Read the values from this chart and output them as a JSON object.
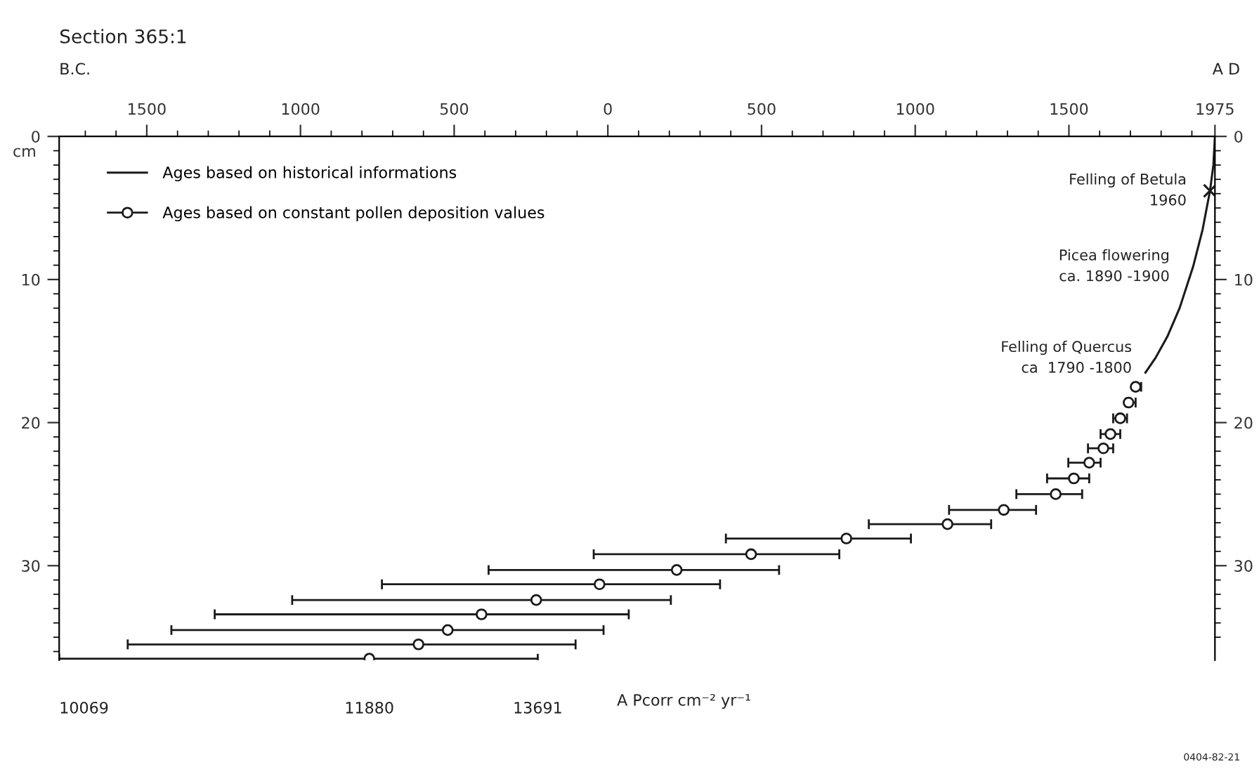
{
  "chart_data": {
    "type": "scatter",
    "title": "Section 365:1",
    "ylabel": "cm",
    "annotations": [
      "B.C.",
      "A D",
      {
        "text": "Felling of Betula\n1960",
        "x": 1959,
        "y": 3.8
      },
      {
        "text": "Picea flowering\nca. 1890 -1900",
        "x": 1904,
        "y": 9.1
      },
      {
        "text": "Felling of Quercus\nca  1790 -1800",
        "x": 1781,
        "y": 15.5
      },
      {
        "text": "10069",
        "x": -1785,
        "y": 36.5
      },
      {
        "text": "11880",
        "x": -776,
        "y": 36.5
      },
      {
        "text": "13691",
        "x": -228,
        "y": 36.5
      },
      "A Pcorr cm⁻² yr⁻¹",
      "0404-82-21"
    ],
    "legend": "top left",
    "grid": false,
    "series": [
      {
        "name": "Ages based on historical informations",
        "type": "line",
        "color": "#1a1a1a",
        "marker": "none",
        "line_style": "solid",
        "x": [
          1975,
          1970,
          1959,
          1935,
          1904,
          1860,
          1820,
          1781,
          1749
        ],
        "values": [
          0,
          2,
          3.8,
          6.5,
          9.1,
          12,
          14,
          15.5,
          16.5
        ]
      },
      {
        "name": "Ages based on constant pollen deposition values",
        "color": "#1a1a1a",
        "marker": "circle",
        "x": [
          1717,
          1694,
          1667,
          1635,
          1612,
          1566,
          1516,
          1457,
          1288,
          1105,
          776,
          466,
          224,
          -27,
          -233,
          -411,
          -521,
          -616,
          -776
        ],
        "values": [
          17.5,
          18.6,
          19.7,
          20.8,
          21.8,
          22.8,
          23.9,
          25.0,
          26.1,
          27.1,
          28.1,
          29.2,
          30.3,
          31.3,
          32.4,
          33.4,
          34.5,
          35.5,
          36.5
        ],
        "xerrors": [
          [
            1712,
            1735
          ],
          [
            1685,
            1717
          ],
          [
            1644,
            1689
          ],
          [
            1603,
            1667
          ],
          [
            1562,
            1644
          ],
          [
            1498,
            1603
          ],
          [
            1429,
            1566
          ],
          [
            1329,
            1543
          ],
          [
            1110,
            1393
          ],
          [
            849,
            1247
          ],
          [
            384,
            986
          ],
          [
            -46,
            753
          ],
          [
            -388,
            557
          ],
          [
            -735,
            365
          ],
          [
            -1027,
            205
          ],
          [
            -1279,
            68
          ],
          [
            -1420,
            -14
          ],
          [
            -1562,
            -105
          ],
          [
            -1785,
            -228
          ]
        ]
      },
      {
        "color": "#1a1a1a",
        "marker": "cross",
        "x": [
          1959
        ],
        "values": [
          3.8
        ]
      }
    ],
    "xlim": [
      -1785,
      1975
    ],
    "xticks": [
      {
        "value": -1700,
        "label": null
      },
      {
        "value": -1600,
        "label": null
      },
      {
        "value": -1500,
        "label": "1500"
      },
      {
        "value": -1400,
        "label": null
      },
      {
        "value": -1300,
        "label": null
      },
      {
        "value": -1200,
        "label": null
      },
      {
        "value": -1100,
        "label": null
      },
      {
        "value": -1000,
        "label": "1000"
      },
      {
        "value": -900,
        "label": null
      },
      {
        "value": -800,
        "label": null
      },
      {
        "value": -700,
        "label": null
      },
      {
        "value": -600,
        "label": null
      },
      {
        "value": -500,
        "label": "500"
      },
      {
        "value": -400,
        "label": null
      },
      {
        "value": -300,
        "label": null
      },
      {
        "value": -200,
        "label": null
      },
      {
        "value": -100,
        "label": null
      },
      0,
      {
        "value": 100,
        "label": null
      },
      {
        "value": 200,
        "label": null
      },
      {
        "value": 300,
        "label": null
      },
      {
        "value": 400,
        "label": null
      },
      500,
      {
        "value": 600,
        "label": null
      },
      {
        "value": 700,
        "label": null
      },
      {
        "value": 800,
        "label": null
      },
      {
        "value": 900,
        "label": null
      },
      1000,
      {
        "value": 1100,
        "label": null
      },
      {
        "value": 1200,
        "label": null
      },
      {
        "value": 1300,
        "label": null
      },
      {
        "value": 1400,
        "label": null
      },
      1500,
      {
        "value": 1600,
        "label": null
      },
      {
        "value": 1700,
        "label": null
      },
      {
        "value": 1800,
        "label": null
      },
      {
        "value": 1900,
        "label": null
      },
      1975
    ],
    "ylim": [
      36.6,
      0
    ],
    "yticks": [
      0,
      {
        "value": 1,
        "label": null
      },
      {
        "value": 2,
        "label": null
      },
      {
        "value": 3,
        "label": null
      },
      {
        "value": 4,
        "label": null
      },
      {
        "value": 5,
        "label": null
      },
      {
        "value": 6,
        "label": null
      },
      {
        "value": 7,
        "label": null
      },
      {
        "value": 8,
        "label": null
      },
      {
        "value": 9,
        "label": null
      },
      10,
      {
        "value": 11,
        "label": null
      },
      {
        "value": 12,
        "label": null
      },
      {
        "value": 13,
        "label": null
      },
      {
        "value": 14,
        "label": null
      },
      {
        "value": 15,
        "label": null
      },
      {
        "value": 16,
        "label": null
      },
      {
        "value": 17,
        "label": null
      },
      {
        "value": 18,
        "label": null
      },
      {
        "value": 19,
        "label": null
      },
      20,
      {
        "value": 21,
        "label": null
      },
      {
        "value": 22,
        "label": null
      },
      {
        "value": 23,
        "label": null
      },
      {
        "value": 24,
        "label": null
      },
      {
        "value": 25,
        "label": null
      },
      {
        "value": 26,
        "label": null
      },
      {
        "value": 27,
        "label": null
      },
      {
        "value": 28,
        "label": null
      },
      {
        "value": 29,
        "label": null
      },
      30,
      {
        "value": 31,
        "label": null
      },
      {
        "value": 32,
        "label": null
      },
      {
        "value": 33,
        "label": null
      },
      {
        "value": 34,
        "label": null
      },
      {
        "value": 35,
        "label": null
      },
      {
        "value": 36,
        "label": null
      }
    ],
    "y2lim": [
      36.6,
      0
    ],
    "y2ticks": [
      0,
      {
        "value": 1,
        "label": null
      },
      {
        "value": 2,
        "label": null
      },
      {
        "value": 3,
        "label": null
      },
      {
        "value": 4,
        "label": null
      },
      {
        "value": 5,
        "label": null
      },
      {
        "value": 6,
        "label": null
      },
      {
        "value": 7,
        "label": null
      },
      {
        "value": 8,
        "label": null
      },
      {
        "value": 9,
        "label": null
      },
      10,
      {
        "value": 11,
        "label": null
      },
      {
        "value": 12,
        "label": null
      },
      {
        "value": 13,
        "label": null
      },
      {
        "value": 14,
        "label": null
      },
      {
        "value": 15,
        "label": null
      },
      {
        "value": 16,
        "label": null
      },
      {
        "value": 17,
        "label": null
      },
      {
        "value": 18,
        "label": null
      },
      {
        "value": 19,
        "label": null
      },
      20,
      {
        "value": 21,
        "label": null
      },
      {
        "value": 22,
        "label": null
      },
      {
        "value": 23,
        "label": null
      },
      {
        "value": 24,
        "label": null
      },
      {
        "value": 25,
        "label": null
      },
      {
        "value": 26,
        "label": null
      },
      {
        "value": 27,
        "label": null
      },
      {
        "value": 28,
        "label": null
      },
      {
        "value": 29,
        "label": null
      },
      30,
      {
        "value": 31,
        "label": null
      },
      {
        "value": 32,
        "label": null
      },
      {
        "value": 33,
        "label": null
      },
      {
        "value": 34,
        "label": null
      },
      {
        "value": 35,
        "label": null
      }
    ]
  }
}
